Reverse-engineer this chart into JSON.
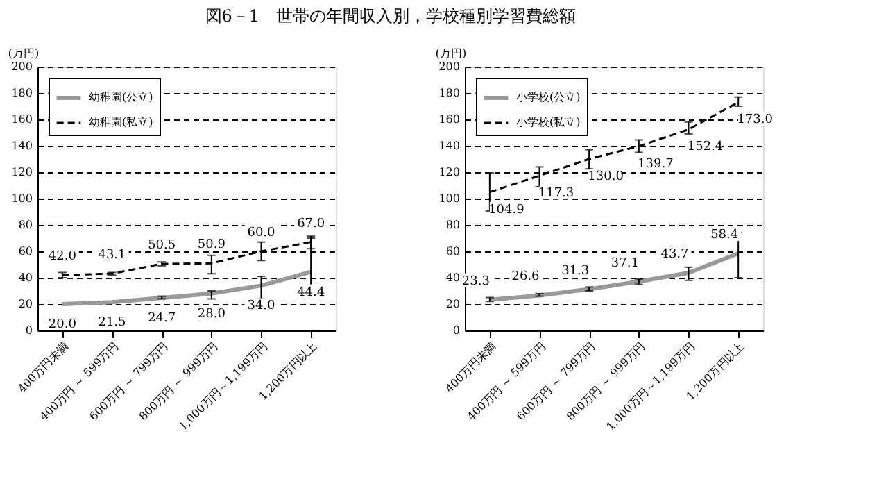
{
  "chart_data": [
    {
      "type": "line",
      "title": "図6－1　世帯の年間収入別，学校種別学習費総額",
      "ylabel": "(万円)",
      "categories": [
        "400万円未満",
        "400万円 ～ 599万円",
        "600万円 ～ 799万円",
        "800万円 ～ 999万円",
        "1,000万円～1,199万円",
        "1,200万円以上"
      ],
      "series": [
        {
          "name": "幼稚園(公立)",
          "color": "#999999",
          "line_style": "solid",
          "values": [
            20.0,
            21.5,
            24.7,
            28.0,
            34.0,
            44.4
          ],
          "value_labels": [
            "20.0",
            "21.5",
            "24.7",
            "28.0",
            "34.0",
            "44.4"
          ],
          "errors": [
            null,
            null,
            [
              24,
              26
            ],
            [
              24,
              30
            ],
            [
              24,
              41
            ],
            [
              28,
              70
            ]
          ]
        },
        {
          "name": "幼稚園(私立)",
          "color": "#000000",
          "line_style": "dashed",
          "values": [
            42.0,
            43.1,
            50.5,
            50.9,
            60.0,
            67.0
          ],
          "value_labels": [
            "42.0",
            "43.1",
            "50.5",
            "50.9",
            "60.0",
            "67.0"
          ],
          "errors": [
            [
              40,
              44
            ],
            [
              42,
              44
            ],
            [
              49,
              52
            ],
            [
              43,
              57
            ],
            [
              53,
              67
            ],
            [
              62,
              71.5
            ]
          ]
        }
      ],
      "ylim": [
        0,
        200
      ],
      "yticks": [
        0,
        20,
        40,
        60,
        80,
        100,
        120,
        140,
        160,
        180,
        200
      ],
      "grid": "y",
      "legend": "top left",
      "marker": "none"
    },
    {
      "type": "line",
      "ylabel": "(万円)",
      "categories": [
        "400万円未満",
        "400万円 ～ 599万円",
        "600万円 ～ 799万円",
        "800万円 ～ 999万円",
        "1,000万円～1,199万円",
        "1,200万円以上"
      ],
      "series": [
        {
          "name": "小学校(公立)",
          "color": "#999999",
          "line_style": "solid",
          "values": [
            23.3,
            26.6,
            31.3,
            37.1,
            43.7,
            58.4
          ],
          "value_labels": [
            "23.3",
            "26.6",
            "31.3",
            "37.1",
            "43.7",
            "58.4"
          ],
          "errors": [
            [
              22,
              25
            ],
            [
              26,
              28
            ],
            [
              30,
              33
            ],
            [
              35,
              39
            ],
            [
              38,
              48
            ],
            [
              40,
              74
            ]
          ]
        },
        {
          "name": "小学校(私立)",
          "color": "#000000",
          "line_style": "dashed",
          "values": [
            104.9,
            117.3,
            130.0,
            139.7,
            152.4,
            173.0
          ],
          "value_labels": [
            "104.9",
            "117.3",
            "130.0",
            "139.7",
            "152.4",
            "173.0"
          ],
          "errors": [
            [
              90.5,
              119.5
            ],
            [
              109,
              124
            ],
            [
              122.5,
              137
            ],
            [
              135,
              144.5
            ],
            [
              149,
              158
            ],
            [
              170,
              177
            ]
          ]
        }
      ],
      "ylim": [
        0,
        200
      ],
      "yticks": [
        0,
        20,
        40,
        60,
        80,
        100,
        120,
        140,
        160,
        180,
        200
      ],
      "grid": "y",
      "legend": "top left",
      "marker": "none"
    }
  ]
}
